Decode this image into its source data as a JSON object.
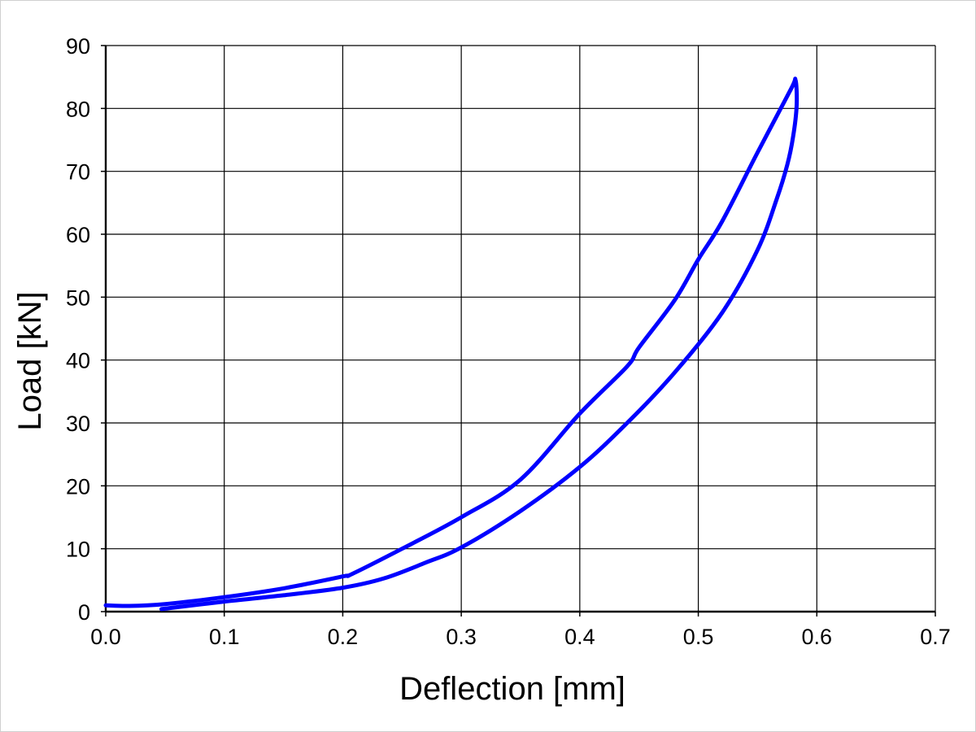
{
  "chart_data": {
    "type": "line",
    "title": "",
    "xlabel": "Deflection [mm]",
    "ylabel": "Load [kN]",
    "xlim": [
      0,
      0.7
    ],
    "ylim": [
      0,
      90
    ],
    "xticks": [
      "0.0",
      "0.1",
      "0.2",
      "0.3",
      "0.4",
      "0.5",
      "0.6",
      "0.7"
    ],
    "yticks": [
      "0",
      "10",
      "20",
      "30",
      "40",
      "50",
      "60",
      "70",
      "80",
      "90"
    ],
    "grid": true,
    "legend": "none",
    "series": [
      {
        "color": "#0000ff",
        "x": [
          0.047,
          0.1,
          0.15,
          0.2,
          0.235,
          0.27,
          0.3,
          0.35,
          0.4,
          0.44,
          0.48,
          0.52,
          0.55,
          0.566,
          0.575,
          0.58,
          0.583,
          0.582,
          0.578,
          0.55,
          0.52,
          0.5,
          0.48,
          0.45,
          0.44,
          0.4,
          0.35,
          0.3,
          0.25,
          0.208,
          0.2,
          0.15,
          0.1,
          0.05,
          0.02,
          0.0
        ],
        "y": [
          0.4,
          1.6,
          2.6,
          3.8,
          5.3,
          7.8,
          10.2,
          16.0,
          23.0,
          30.0,
          38.0,
          47.5,
          57.5,
          65.5,
          71.0,
          75.5,
          80.5,
          84.5,
          83.0,
          73.0,
          62.0,
          56.0,
          49.5,
          42.0,
          39.0,
          31.5,
          21.0,
          15.0,
          10.0,
          6.0,
          5.6,
          3.7,
          2.3,
          1.2,
          0.9,
          1.0
        ]
      }
    ]
  }
}
